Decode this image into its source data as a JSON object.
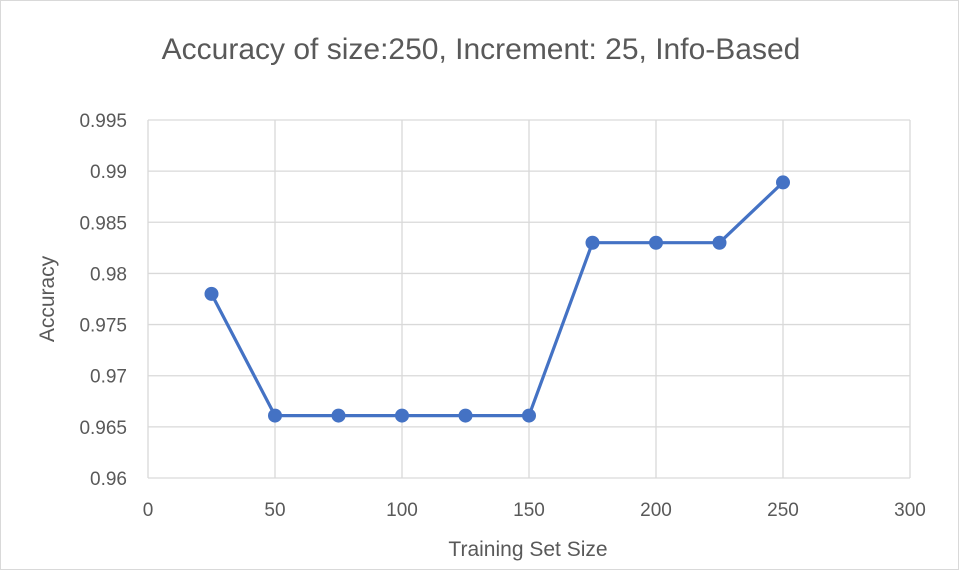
{
  "chart_data": {
    "type": "line",
    "title": "Accuracy of size:250, Increment: 25, Info-Based",
    "xlabel": "Training Set Size",
    "ylabel": "Accuracy",
    "xlim": [
      0,
      300
    ],
    "ylim": [
      0.96,
      0.995
    ],
    "x_ticks": [
      0,
      50,
      100,
      150,
      200,
      250,
      300
    ],
    "y_ticks": [
      0.96,
      0.965,
      0.97,
      0.975,
      0.98,
      0.985,
      0.99,
      0.995
    ],
    "x_tick_labels": [
      "0",
      "50",
      "100",
      "150",
      "200",
      "250",
      "300"
    ],
    "y_tick_labels": [
      "0.96",
      "0.965",
      "0.97",
      "0.975",
      "0.98",
      "0.985",
      "0.99",
      "0.995"
    ],
    "grid": true,
    "series": [
      {
        "color": "#4472c4",
        "x": [
          25,
          50,
          75,
          100,
          125,
          150,
          175,
          200,
          225,
          250
        ],
        "y": [
          0.978,
          0.9661,
          0.9661,
          0.9661,
          0.9661,
          0.9661,
          0.983,
          0.983,
          0.983,
          0.9889
        ]
      }
    ]
  }
}
